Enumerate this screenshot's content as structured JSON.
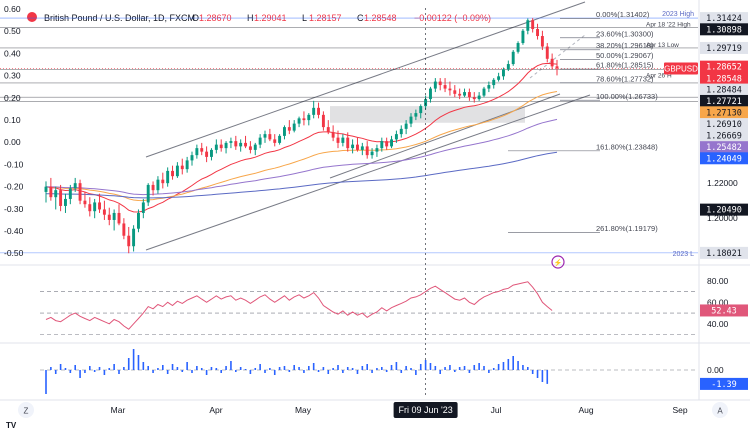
{
  "header": {
    "symbol_title": "British Pound / U.S. Dollar, 1D, FXCM",
    "ohlc": [
      {
        "k": "O",
        "v": "1.28670"
      },
      {
        "k": "H",
        "v": "1.29041"
      },
      {
        "k": "L",
        "v": "1.28157"
      },
      {
        "k": "C",
        "v": "1.28548"
      }
    ],
    "change": "−0.00122 (−0.09%)",
    "currency": "USD"
  },
  "colors": {
    "up": "#089981",
    "down": "#f23645",
    "ema_fast": "#f23645",
    "ema_mid": "#f7a64a",
    "ema_slow": "#9575cd",
    "ema_slowest": "#5b6ac4",
    "rsi": "#e0577a",
    "volume": "#2962ff",
    "channel": "#787b86",
    "zone": "#c8c9cc",
    "blue_line": "#2962ff"
  },
  "chart_data": [
    {
      "type": "candlestick",
      "symbol": "GBPUSD",
      "y_left_ticks": [
        "0.60",
        "0.50",
        "0.40",
        "0.30",
        "0.20",
        "0.10",
        "0.00",
        "-0.10",
        "-0.20",
        "-0.30",
        "-0.40",
        "-0.50"
      ],
      "y_right_ticks": [
        "1.22000",
        "1.20000"
      ],
      "x_ticks": [
        "Mar",
        "Apr",
        "May",
        "Jul",
        "Aug",
        "Sep"
      ],
      "crosshair_date": "Fri 09 Jun '23",
      "price_labels": [
        {
          "text": "2023 High",
          "value": 1.31424,
          "style": "plain"
        },
        {
          "text": "1.31424",
          "value": 1.31424,
          "style": "gray"
        },
        {
          "text": "1.30898",
          "value": 1.30898,
          "style": "dark"
        },
        {
          "text": "1.29719",
          "value": 1.29719,
          "style": "gray"
        },
        {
          "text": "1.28652",
          "value": 1.28652,
          "style": "red"
        },
        {
          "text": "1.28548",
          "value": 1.28548,
          "style": "red"
        },
        {
          "text": "1.28484",
          "value": 1.28484,
          "style": "gray"
        },
        {
          "text": "1.27721",
          "value": 1.27721,
          "style": "dark"
        },
        {
          "text": "1.27130",
          "value": 1.2713,
          "style": "orange"
        },
        {
          "text": "1.26910",
          "value": 1.2691,
          "style": "gray"
        },
        {
          "text": "1.26669",
          "value": 1.26669,
          "style": "gray"
        },
        {
          "text": "1.25482",
          "value": 1.25482,
          "style": "purple"
        },
        {
          "text": "1.24049",
          "value": 1.24049,
          "style": "blue"
        },
        {
          "text": "1.20490",
          "value": 1.2049,
          "style": "dark"
        },
        {
          "text": "1.18021",
          "value": 1.18021,
          "style": "gray"
        },
        {
          "text": "2023 L",
          "value": 1.18021,
          "style": "plain"
        }
      ],
      "symbol_tag": "GBPUSD",
      "level_notes": [
        {
          "text": "Apr 18 '22 High",
          "value": 1.30898
        },
        {
          "text": "Apr 13 Low",
          "value": 1.29719
        },
        {
          "text": "Apr 26 H",
          "value": 1.28484
        }
      ],
      "fibonacci": [
        {
          "label": "0.00%(1.31402)",
          "value": 1.31402
        },
        {
          "label": "23.60%(1.30300)",
          "value": 1.303
        },
        {
          "label": "38.20%(1.29618)",
          "value": 1.29618
        },
        {
          "label": "50.00%(1.29067)",
          "value": 1.29067
        },
        {
          "label": "61.80%(1.28515)",
          "value": 1.28515
        },
        {
          "label": "78.60%(1.27732)",
          "value": 1.27732
        },
        {
          "label": "100.00%(1.26733)",
          "value": 1.26733
        },
        {
          "label": "161.80%(1.23848)",
          "value": 1.23848
        },
        {
          "label": "261.80%(1.19179)",
          "value": 1.19179
        }
      ],
      "candles": [
        [
          1.215,
          1.221,
          1.209,
          1.218
        ],
        [
          1.218,
          1.223,
          1.21,
          1.212
        ],
        [
          1.212,
          1.218,
          1.205,
          1.216
        ],
        [
          1.216,
          1.219,
          1.204,
          1.207
        ],
        [
          1.207,
          1.214,
          1.203,
          1.211
        ],
        [
          1.211,
          1.219,
          1.208,
          1.217
        ],
        [
          1.217,
          1.223,
          1.215,
          1.22
        ],
        [
          1.22,
          1.222,
          1.208,
          1.21
        ],
        [
          1.21,
          1.215,
          1.206,
          1.208
        ],
        [
          1.208,
          1.212,
          1.201,
          1.204
        ],
        [
          1.204,
          1.211,
          1.2,
          1.209
        ],
        [
          1.209,
          1.214,
          1.203,
          1.205
        ],
        [
          1.205,
          1.21,
          1.199,
          1.202
        ],
        [
          1.202,
          1.206,
          1.196,
          1.199
        ],
        [
          1.199,
          1.205,
          1.193,
          1.203
        ],
        [
          1.203,
          1.208,
          1.196,
          1.197
        ],
        [
          1.197,
          1.2,
          1.188,
          1.19
        ],
        [
          1.19,
          1.195,
          1.18,
          1.184
        ],
        [
          1.184,
          1.196,
          1.181,
          1.194
        ],
        [
          1.194,
          1.205,
          1.192,
          1.203
        ],
        [
          1.203,
          1.211,
          1.2,
          1.209
        ],
        [
          1.209,
          1.22,
          1.207,
          1.219
        ],
        [
          1.219,
          1.221,
          1.213,
          1.216
        ],
        [
          1.216,
          1.224,
          1.214,
          1.222
        ],
        [
          1.222,
          1.226,
          1.217,
          1.22
        ],
        [
          1.22,
          1.229,
          1.218,
          1.227
        ],
        [
          1.227,
          1.23,
          1.222,
          1.224
        ],
        [
          1.224,
          1.232,
          1.223,
          1.23
        ],
        [
          1.23,
          1.234,
          1.225,
          1.228
        ],
        [
          1.228,
          1.235,
          1.226,
          1.233
        ],
        [
          1.233,
          1.238,
          1.23,
          1.236
        ],
        [
          1.236,
          1.242,
          1.234,
          1.24
        ],
        [
          1.24,
          1.243,
          1.236,
          1.238
        ],
        [
          1.238,
          1.241,
          1.232,
          1.235
        ],
        [
          1.235,
          1.24,
          1.233,
          1.239
        ],
        [
          1.239,
          1.245,
          1.237,
          1.242
        ],
        [
          1.242,
          1.245,
          1.238,
          1.24
        ],
        [
          1.24,
          1.244,
          1.237,
          1.243
        ],
        [
          1.243,
          1.246,
          1.24,
          1.244
        ],
        [
          1.244,
          1.247,
          1.239,
          1.241
        ],
        [
          1.241,
          1.245,
          1.238,
          1.243
        ],
        [
          1.243,
          1.247,
          1.24,
          1.241
        ],
        [
          1.241,
          1.244,
          1.237,
          1.239
        ],
        [
          1.239,
          1.243,
          1.236,
          1.242
        ],
        [
          1.242,
          1.248,
          1.24,
          1.246
        ],
        [
          1.246,
          1.25,
          1.243,
          1.248
        ],
        [
          1.248,
          1.251,
          1.244,
          1.245
        ],
        [
          1.245,
          1.248,
          1.241,
          1.243
        ],
        [
          1.243,
          1.248,
          1.242,
          1.247
        ],
        [
          1.247,
          1.253,
          1.245,
          1.252
        ],
        [
          1.252,
          1.256,
          1.248,
          1.25
        ],
        [
          1.25,
          1.256,
          1.249,
          1.254
        ],
        [
          1.254,
          1.258,
          1.252,
          1.257
        ],
        [
          1.257,
          1.261,
          1.253,
          1.256
        ],
        [
          1.256,
          1.26,
          1.253,
          1.259
        ],
        [
          1.259,
          1.267,
          1.257,
          1.263
        ],
        [
          1.263,
          1.266,
          1.257,
          1.259
        ],
        [
          1.259,
          1.261,
          1.25,
          1.252
        ],
        [
          1.252,
          1.256,
          1.248,
          1.249
        ],
        [
          1.249,
          1.253,
          1.244,
          1.246
        ],
        [
          1.246,
          1.25,
          1.24,
          1.243
        ],
        [
          1.243,
          1.248,
          1.241,
          1.246
        ],
        [
          1.246,
          1.249,
          1.238,
          1.24
        ],
        [
          1.24,
          1.245,
          1.237,
          1.242
        ],
        [
          1.242,
          1.246,
          1.238,
          1.239
        ],
        [
          1.239,
          1.243,
          1.236,
          1.241
        ],
        [
          1.241,
          1.244,
          1.234,
          1.236
        ],
        [
          1.236,
          1.24,
          1.234,
          1.238
        ],
        [
          1.238,
          1.242,
          1.235,
          1.24
        ],
        [
          1.24,
          1.246,
          1.238,
          1.244
        ],
        [
          1.244,
          1.246,
          1.239,
          1.241
        ],
        [
          1.241,
          1.247,
          1.24,
          1.245
        ],
        [
          1.245,
          1.25,
          1.243,
          1.248
        ],
        [
          1.248,
          1.253,
          1.246,
          1.251
        ],
        [
          1.251,
          1.256,
          1.248,
          1.254
        ],
        [
          1.254,
          1.26,
          1.252,
          1.258
        ],
        [
          1.258,
          1.262,
          1.256,
          1.26
        ],
        [
          1.26,
          1.265,
          1.257,
          1.264
        ],
        [
          1.264,
          1.27,
          1.262,
          1.268
        ],
        [
          1.268,
          1.275,
          1.266,
          1.274
        ],
        [
          1.274,
          1.28,
          1.272,
          1.278
        ],
        [
          1.278,
          1.28,
          1.273,
          1.276
        ],
        [
          1.276,
          1.28,
          1.272,
          1.274
        ],
        [
          1.274,
          1.278,
          1.27,
          1.273
        ],
        [
          1.273,
          1.276,
          1.269,
          1.271
        ],
        [
          1.271,
          1.274,
          1.268,
          1.27
        ],
        [
          1.27,
          1.274,
          1.269,
          1.272
        ],
        [
          1.272,
          1.274,
          1.267,
          1.269
        ],
        [
          1.269,
          1.272,
          1.266,
          1.268
        ],
        [
          1.268,
          1.272,
          1.267,
          1.27
        ],
        [
          1.27,
          1.275,
          1.269,
          1.274
        ],
        [
          1.274,
          1.278,
          1.272,
          1.276
        ],
        [
          1.276,
          1.28,
          1.274,
          1.279
        ],
        [
          1.279,
          1.283,
          1.278,
          1.281
        ],
        [
          1.281,
          1.286,
          1.279,
          1.285
        ],
        [
          1.285,
          1.29,
          1.284,
          1.288
        ],
        [
          1.288,
          1.296,
          1.287,
          1.295
        ],
        [
          1.295,
          1.301,
          1.294,
          1.3
        ],
        [
          1.3,
          1.308,
          1.299,
          1.307
        ],
        [
          1.307,
          1.314,
          1.305,
          1.313
        ],
        [
          1.313,
          1.3142,
          1.306,
          1.308
        ],
        [
          1.308,
          1.311,
          1.302,
          1.304
        ],
        [
          1.304,
          1.307,
          1.296,
          1.298
        ],
        [
          1.298,
          1.3,
          1.289,
          1.291
        ],
        [
          1.291,
          1.294,
          1.285,
          1.2867
        ],
        [
          1.2867,
          1.29041,
          1.28157,
          1.28548
        ]
      ],
      "rsi": {
        "levels": [
          70,
          50,
          30
        ],
        "ticks": [
          "80.00",
          "60.00",
          "40.00"
        ],
        "current": "52.43",
        "values": [
          44,
          46,
          43,
          42,
          45,
          48,
          50,
          47,
          45,
          43,
          46,
          44,
          42,
          40,
          44,
          42,
          38,
          35,
          40,
          45,
          50,
          56,
          54,
          58,
          56,
          60,
          57,
          61,
          59,
          62,
          64,
          66,
          63,
          60,
          63,
          66,
          63,
          65,
          66,
          62,
          64,
          62,
          59,
          62,
          65,
          67,
          63,
          60,
          63,
          66,
          62,
          65,
          67,
          64,
          66,
          69,
          64,
          57,
          54,
          51,
          49,
          52,
          48,
          51,
          48,
          50,
          46,
          49,
          51,
          55,
          52,
          55,
          57,
          59,
          61,
          64,
          65,
          67,
          70,
          73,
          75,
          72,
          69,
          66,
          63,
          62,
          64,
          60,
          58,
          62,
          65,
          67,
          69,
          70,
          72,
          73,
          76,
          77,
          78,
          79,
          74,
          68,
          60,
          56,
          52.43
        ]
      },
      "volume_osc": {
        "zero_tick": "0.00",
        "current": "-1.39",
        "values": [
          -2.4,
          0.3,
          -0.4,
          0.6,
          0.2,
          -0.3,
          0.5,
          -0.8,
          -0.3,
          0.4,
          -0.2,
          0.3,
          -0.5,
          0.2,
          0.6,
          -0.4,
          0.3,
          1.2,
          2.1,
          1.5,
          0.8,
          0.4,
          -0.3,
          0.2,
          0.5,
          -0.4,
          0.6,
          0.3,
          -0.2,
          0.8,
          -0.3,
          0.4,
          0.2,
          -0.5,
          0.3,
          0.2,
          -0.3,
          0.4,
          0.9,
          -0.2,
          0.3,
          0.1,
          -0.4,
          0.2,
          0.6,
          -0.3,
          0.2,
          -0.5,
          0.3,
          0.4,
          -0.2,
          0.5,
          0.3,
          -0.3,
          0.4,
          0.7,
          -0.2,
          0.3,
          -0.4,
          0.2,
          0.5,
          -0.3,
          0.3,
          0.2,
          -0.4,
          0.4,
          0.6,
          -0.3,
          0.2,
          0.3,
          -0.2,
          0.5,
          0.8,
          -0.3,
          0.4,
          0.2,
          -0.5,
          0.6,
          1.0,
          0.7,
          0.4,
          -0.4,
          0.3,
          0.5,
          -0.2,
          0.3,
          0.4,
          -0.3,
          0.5,
          0.7,
          0.4,
          -0.3,
          0.2,
          0.6,
          0.8,
          1.1,
          1.4,
          0.9,
          0.5,
          0.3,
          -0.4,
          -0.8,
          -1.2,
          -1.39
        ]
      },
      "watermark": "TV"
    }
  ]
}
